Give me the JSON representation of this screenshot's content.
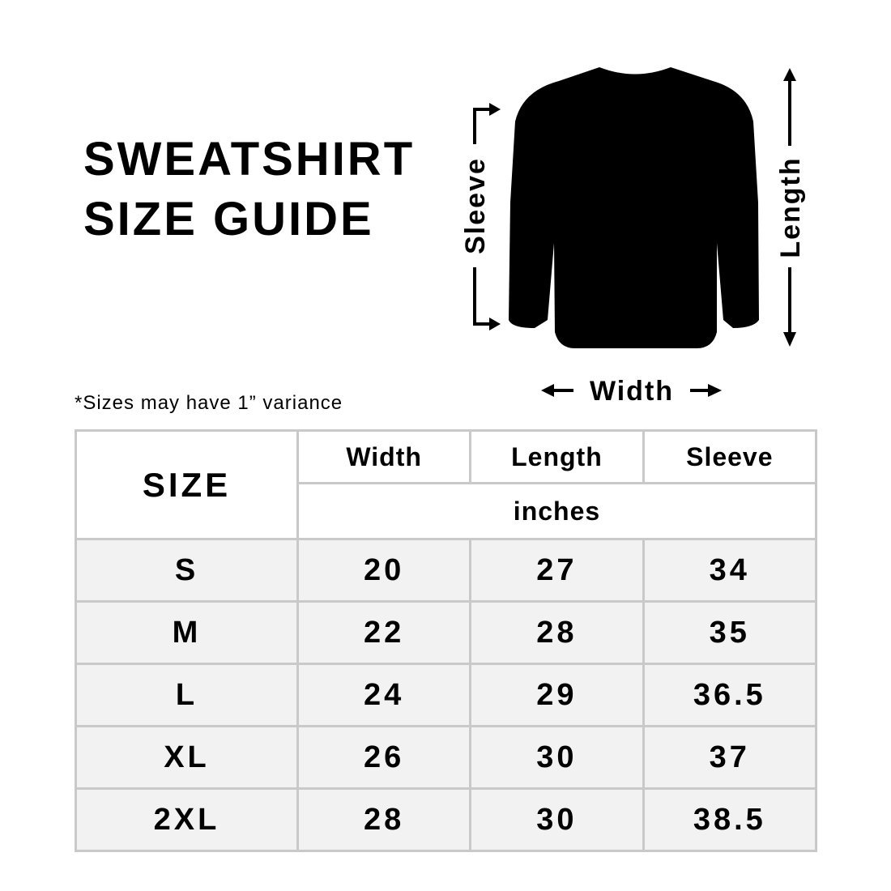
{
  "title": {
    "line1": "SWEATSHIRT",
    "line2": "SIZE GUIDE"
  },
  "note": "*Sizes may have 1” variance",
  "diagram": {
    "sleeve_label": "Sleeve",
    "length_label": "Length",
    "width_label": "Width",
    "garment_color": "#000000"
  },
  "table": {
    "size_header": "SIZE",
    "columns": [
      "Width",
      "Length",
      "Sleeve"
    ],
    "unit": "inches",
    "rows": [
      {
        "size": "S",
        "width": "20",
        "length": "27",
        "sleeve": "34"
      },
      {
        "size": "M",
        "width": "22",
        "length": "28",
        "sleeve": "35"
      },
      {
        "size": "L",
        "width": "24",
        "length": "29",
        "sleeve": "36.5"
      },
      {
        "size": "XL",
        "width": "26",
        "length": "30",
        "sleeve": "37"
      },
      {
        "size": "2XL",
        "width": "28",
        "length": "30",
        "sleeve": "38.5"
      }
    ],
    "border_color": "#c9c9c9",
    "row_background": "#f2f2f2"
  }
}
